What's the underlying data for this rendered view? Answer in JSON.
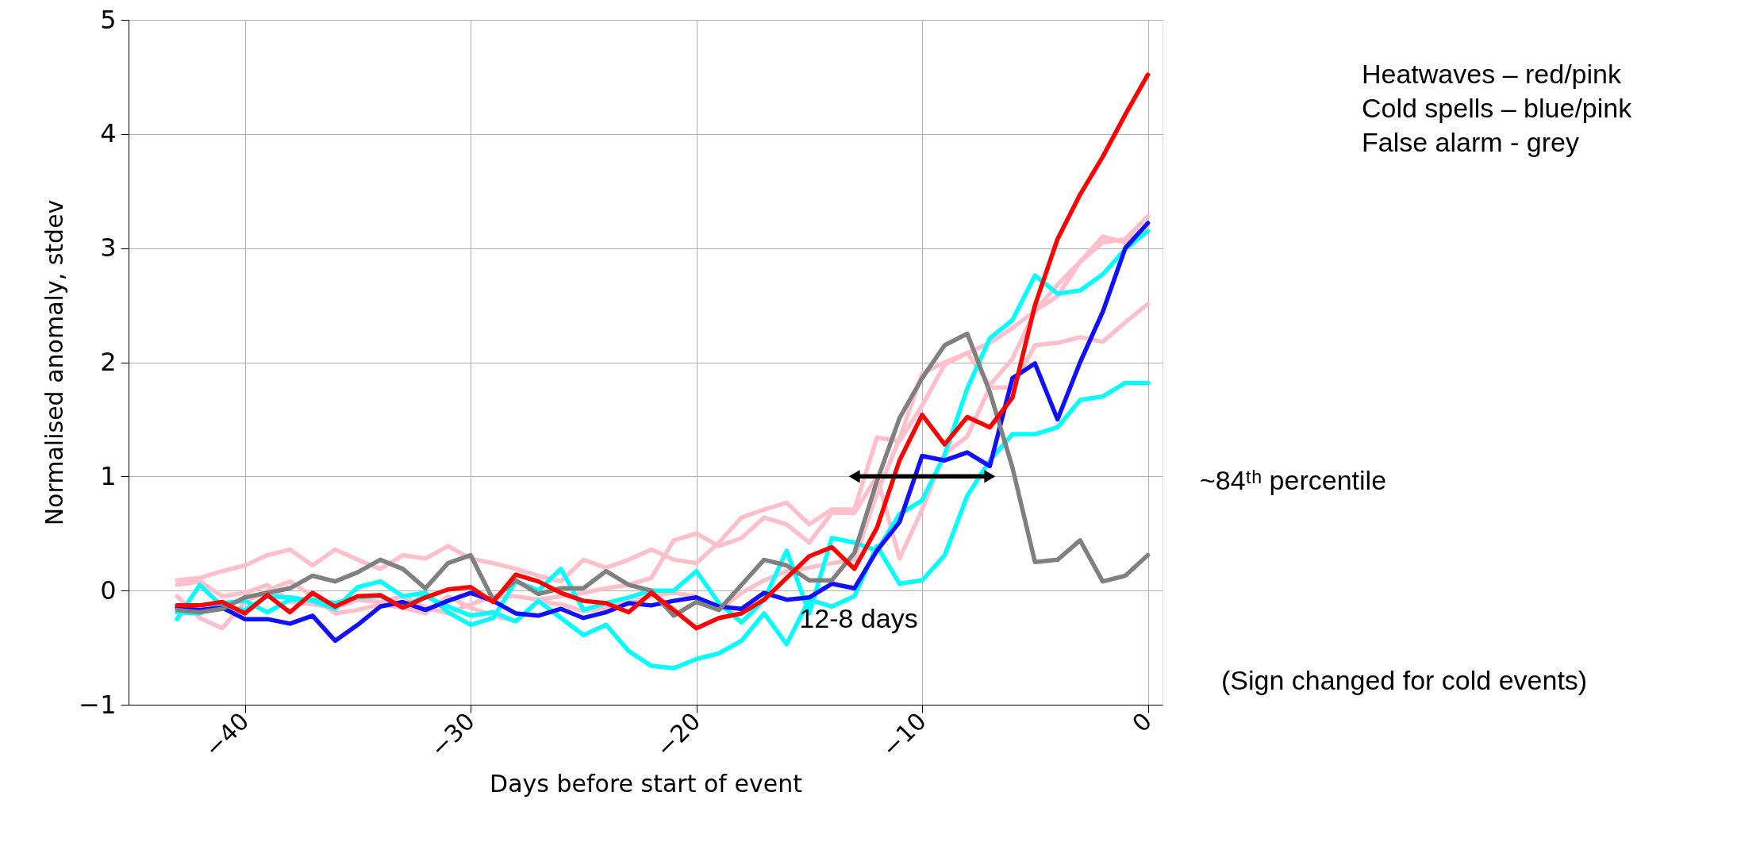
{
  "chart_data": {
    "type": "line",
    "xlabel": "Days before start of event",
    "ylabel": "Normalised anomaly, stdev",
    "x": [
      -43,
      -42,
      -41,
      -40,
      -39,
      -38,
      -37,
      -36,
      -35,
      -34,
      -33,
      -32,
      -31,
      -30,
      -29,
      -28,
      -27,
      -26,
      -25,
      -24,
      -23,
      -22,
      -21,
      -20,
      -19,
      -18,
      -17,
      -16,
      -15,
      -14,
      -13,
      -12,
      -11,
      -10,
      -9,
      -8,
      -7,
      -6,
      -5,
      -4,
      -3,
      -2,
      -1,
      0
    ],
    "series": [
      {
        "color": "#ffc0cb",
        "values": [
          0.09,
          0.11,
          0.17,
          0.22,
          0.31,
          0.36,
          0.22,
          0.36,
          0.27,
          0.19,
          0.31,
          0.28,
          0.39,
          0.28,
          0.24,
          0.19,
          0.13,
          0.08,
          0.27,
          0.2,
          0.27,
          0.36,
          0.27,
          0.24,
          0.42,
          0.64,
          0.71,
          0.77,
          0.58,
          0.71,
          0.71,
          1.34,
          1.31,
          1.62,
          1.98,
          2.08,
          2.17,
          2.3,
          2.45,
          2.58,
          2.88,
          3.1,
          3.05,
          3.2
        ]
      },
      {
        "color": "#ffc0cb",
        "values": [
          0.05,
          0.08,
          -0.05,
          -0.02,
          0.05,
          -0.1,
          -0.12,
          -0.15,
          -0.08,
          -0.1,
          -0.05,
          -0.15,
          -0.2,
          -0.12,
          -0.05,
          -0.05,
          -0.08,
          -0.05,
          -0.02,
          0.02,
          0.05,
          0.11,
          0.44,
          0.5,
          0.39,
          0.46,
          0.64,
          0.58,
          0.42,
          0.68,
          0.68,
          1.0,
          0.28,
          0.71,
          1.2,
          1.35,
          1.78,
          1.78,
          2.15,
          2.17,
          2.22,
          2.18,
          2.35,
          2.51
        ]
      },
      {
        "color": "#ffc0cb",
        "values": [
          -0.05,
          -0.24,
          -0.33,
          -0.1,
          0,
          0.08,
          -0.05,
          -0.2,
          -0.17,
          -0.12,
          -0.15,
          -0.2,
          -0.05,
          -0.15,
          -0.22,
          -0.27,
          -0.1,
          -0.12,
          -0.18,
          -0.15,
          -0.1,
          -0.05,
          -0.02,
          -0.05,
          -0.17,
          -0.02,
          0.09,
          0.17,
          0.2,
          0.24,
          0.27,
          0.85,
          1.33,
          1.9,
          2.0,
          2.08,
          1.8,
          2.03,
          2.45,
          2.68,
          2.88,
          3.05,
          3.08,
          3.28
        ]
      },
      {
        "color": "#00ffff",
        "values": [
          -0.25,
          0.05,
          -0.14,
          -0.17,
          -0.05,
          -0.06,
          -0.09,
          -0.16,
          0.03,
          0.08,
          -0.05,
          -0.02,
          -0.19,
          -0.3,
          -0.24,
          0.08,
          0,
          0.19,
          -0.17,
          -0.11,
          -0.06,
          0,
          0,
          0.17,
          -0.11,
          -0.28,
          -0.08,
          0.35,
          -0.2,
          0.46,
          0.42,
          0.35,
          0.67,
          0.79,
          1.19,
          1.77,
          2.21,
          2.37,
          2.76,
          2.6,
          2.63,
          2.77,
          2.99,
          3.15
        ]
      },
      {
        "color": "#00ffff",
        "values": [
          -0.19,
          -0.2,
          -0.11,
          -0.09,
          -0.19,
          -0.08,
          -0.08,
          -0.11,
          -0.06,
          -0.05,
          -0.14,
          -0.05,
          -0.14,
          -0.22,
          -0.19,
          -0.27,
          -0.09,
          -0.24,
          -0.39,
          -0.3,
          -0.53,
          -0.66,
          -0.68,
          -0.6,
          -0.55,
          -0.44,
          -0.2,
          -0.47,
          -0.08,
          -0.14,
          -0.05,
          0.39,
          0.06,
          0.09,
          0.31,
          0.83,
          1.14,
          1.37,
          1.37,
          1.43,
          1.67,
          1.7,
          1.82,
          1.82
        ]
      },
      {
        "color": "#1010ff",
        "values": [
          -0.15,
          -0.17,
          -0.15,
          -0.25,
          -0.25,
          -0.29,
          -0.22,
          -0.44,
          -0.3,
          -0.14,
          -0.1,
          -0.17,
          -0.09,
          -0.02,
          -0.09,
          -0.2,
          -0.22,
          -0.16,
          -0.24,
          -0.19,
          -0.11,
          -0.13,
          -0.09,
          -0.06,
          -0.14,
          -0.16,
          -0.02,
          -0.08,
          -0.06,
          0.06,
          0.02,
          0.35,
          0.6,
          1.18,
          1.14,
          1.21,
          1.09,
          1.86,
          1.99,
          1.5,
          2.0,
          2.44,
          3.0,
          3.22
        ]
      },
      {
        "color": "#808080",
        "values": [
          -0.17,
          -0.19,
          -0.16,
          -0.06,
          -0.02,
          0.02,
          0.13,
          0.08,
          0.16,
          0.27,
          0.19,
          0.02,
          0.24,
          0.31,
          -0.08,
          0.09,
          -0.03,
          0.02,
          0.02,
          0.17,
          0.05,
          0,
          -0.22,
          -0.1,
          -0.17,
          0.05,
          0.27,
          0.22,
          0.09,
          0.09,
          0.33,
          0.96,
          1.51,
          1.86,
          2.15,
          2.25,
          1.74,
          1.08,
          0.25,
          0.27,
          0.44,
          0.08,
          0.13,
          0.31
        ]
      },
      {
        "color": "#ff0000",
        "values": [
          -0.13,
          -0.13,
          -0.1,
          -0.2,
          -0.04,
          -0.19,
          -0.02,
          -0.14,
          -0.05,
          -0.04,
          -0.15,
          -0.06,
          0.01,
          0.03,
          -0.1,
          0.14,
          0.08,
          -0.02,
          -0.09,
          -0.11,
          -0.19,
          -0.02,
          -0.17,
          -0.33,
          -0.24,
          -0.2,
          -0.08,
          0.11,
          0.3,
          0.38,
          0.19,
          0.55,
          1.14,
          1.54,
          1.28,
          1.52,
          1.43,
          1.69,
          2.5,
          3.08,
          3.47,
          3.8,
          4.17,
          4.52
        ]
      },
      {
        "type": "line",
        "color": "#000000",
        "marker": "triangle",
        "x": [
          -13,
          -7
        ],
        "values": [
          1,
          1
        ]
      }
    ],
    "xlim": [
      -45.15,
      0.65
    ],
    "xticks": [
      {
        "value": -40,
        "label": "−40"
      },
      {
        "value": -30,
        "label": "−30"
      },
      {
        "value": -20,
        "label": "−20"
      },
      {
        "value": -10,
        "label": "−10"
      },
      0
    ],
    "ylim": [
      -1,
      5
    ],
    "yticks": [
      {
        "value": -1,
        "label": "−1"
      },
      0,
      1,
      2,
      3,
      4,
      5
    ],
    "grid": true,
    "annotations": [
      "Heatwaves – red/pink",
      "Cold spells – blue/pink",
      "False alarm - grey",
      "~84ᵗʰ percentile",
      "12-8 days",
      "(Sign changed for cold events)"
    ]
  }
}
